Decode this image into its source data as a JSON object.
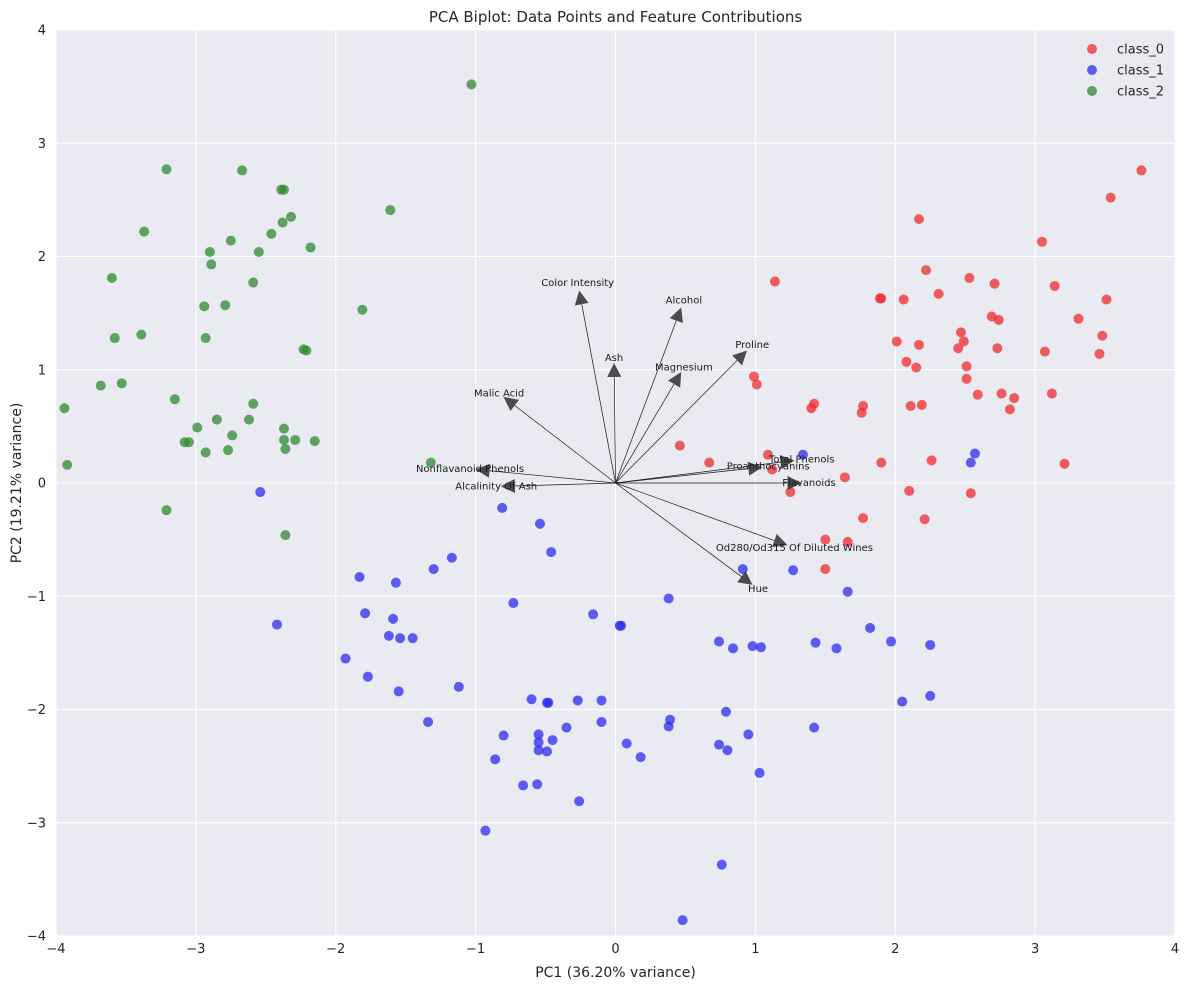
{
  "chart_data": {
    "type": "scatter",
    "title": "PCA Biplot: Data Points and Feature Contributions",
    "xlabel": "PC1 (36.20% variance)",
    "ylabel": "PC2 (19.21% variance)",
    "xlim": [
      -4,
      4
    ],
    "ylim": [
      -4,
      4
    ],
    "xticks": [
      -4,
      -3,
      -2,
      -1,
      0,
      1,
      2,
      3,
      4
    ],
    "yticks": [
      -4,
      -3,
      -2,
      -1,
      0,
      1,
      2,
      3,
      4
    ],
    "grid": true,
    "legend_position": "top-right",
    "series": [
      {
        "name": "class_0",
        "color": "#ef2b2d",
        "points": [
          [
            3.76,
            2.76
          ],
          [
            3.54,
            2.52
          ],
          [
            2.17,
            2.33
          ],
          [
            3.05,
            2.13
          ],
          [
            2.22,
            1.88
          ],
          [
            2.53,
            1.81
          ],
          [
            3.14,
            1.74
          ],
          [
            2.71,
            1.76
          ],
          [
            1.14,
            1.78
          ],
          [
            2.31,
            1.67
          ],
          [
            1.9,
            1.63
          ],
          [
            1.89,
            1.63
          ],
          [
            2.06,
            1.62
          ],
          [
            3.51,
            1.62
          ],
          [
            2.69,
            1.47
          ],
          [
            2.74,
            1.44
          ],
          [
            3.31,
            1.45
          ],
          [
            2.47,
            1.33
          ],
          [
            3.48,
            1.3
          ],
          [
            2.49,
            1.25
          ],
          [
            2.01,
            1.25
          ],
          [
            2.17,
            1.22
          ],
          [
            2.45,
            1.19
          ],
          [
            2.73,
            1.19
          ],
          [
            3.07,
            1.16
          ],
          [
            3.46,
            1.14
          ],
          [
            2.08,
            1.07
          ],
          [
            2.15,
            1.02
          ],
          [
            2.51,
            1.03
          ],
          [
            0.99,
            0.94
          ],
          [
            1.01,
            0.87
          ],
          [
            2.51,
            0.92
          ],
          [
            2.59,
            0.78
          ],
          [
            2.76,
            0.79
          ],
          [
            3.12,
            0.79
          ],
          [
            2.85,
            0.75
          ],
          [
            1.42,
            0.7
          ],
          [
            1.4,
            0.66
          ],
          [
            1.77,
            0.68
          ],
          [
            2.19,
            0.69
          ],
          [
            2.11,
            0.68
          ],
          [
            1.76,
            0.62
          ],
          [
            2.82,
            0.65
          ],
          [
            0.46,
            0.33
          ],
          [
            1.09,
            0.25
          ],
          [
            0.67,
            0.18
          ],
          [
            1.12,
            0.12
          ],
          [
            1.9,
            0.18
          ],
          [
            2.26,
            0.2
          ],
          [
            3.21,
            0.17
          ],
          [
            1.64,
            0.05
          ],
          [
            1.25,
            -0.08
          ],
          [
            2.1,
            -0.07
          ],
          [
            2.54,
            -0.09
          ],
          [
            1.77,
            -0.31
          ],
          [
            2.21,
            -0.32
          ],
          [
            1.66,
            -0.52
          ],
          [
            1.5,
            -0.5
          ],
          [
            1.5,
            -0.76
          ]
        ]
      },
      {
        "name": "class_1",
        "color": "#2b2bef",
        "points": [
          [
            1.34,
            0.25
          ],
          [
            2.57,
            0.26
          ],
          [
            2.54,
            0.18
          ],
          [
            -2.54,
            -0.08
          ],
          [
            -0.81,
            -0.22
          ],
          [
            -0.54,
            -0.36
          ],
          [
            -0.46,
            -0.61
          ],
          [
            -1.17,
            -0.66
          ],
          [
            -1.3,
            -0.76
          ],
          [
            -1.83,
            -0.83
          ],
          [
            -1.57,
            -0.88
          ],
          [
            0.91,
            -0.76
          ],
          [
            1.27,
            -0.77
          ],
          [
            1.66,
            -0.96
          ],
          [
            0.38,
            -1.02
          ],
          [
            -0.73,
            -1.06
          ],
          [
            -1.79,
            -1.15
          ],
          [
            -1.59,
            -1.2
          ],
          [
            -0.16,
            -1.16
          ],
          [
            -2.42,
            -1.25
          ],
          [
            0.03,
            -1.26
          ],
          [
            0.04,
            -1.26
          ],
          [
            1.82,
            -1.28
          ],
          [
            -1.62,
            -1.35
          ],
          [
            -1.54,
            -1.37
          ],
          [
            -1.45,
            -1.37
          ],
          [
            0.74,
            -1.4
          ],
          [
            1.43,
            -1.41
          ],
          [
            1.97,
            -1.4
          ],
          [
            0.84,
            -1.46
          ],
          [
            0.98,
            -1.44
          ],
          [
            1.04,
            -1.45
          ],
          [
            1.58,
            -1.46
          ],
          [
            2.25,
            -1.43
          ],
          [
            -1.93,
            -1.55
          ],
          [
            -1.77,
            -1.71
          ],
          [
            -1.55,
            -1.84
          ],
          [
            -1.12,
            -1.8
          ],
          [
            -0.6,
            -1.91
          ],
          [
            -0.48,
            -1.94
          ],
          [
            -0.49,
            -1.94
          ],
          [
            -0.27,
            -1.92
          ],
          [
            -0.1,
            -1.92
          ],
          [
            2.05,
            -1.93
          ],
          [
            2.25,
            -1.88
          ],
          [
            0.79,
            -2.02
          ],
          [
            -1.34,
            -2.11
          ],
          [
            -0.1,
            -2.11
          ],
          [
            0.39,
            -2.09
          ],
          [
            0.38,
            -2.15
          ],
          [
            -0.8,
            -2.23
          ],
          [
            -0.55,
            -2.22
          ],
          [
            -0.35,
            -2.16
          ],
          [
            -0.55,
            -2.29
          ],
          [
            -0.45,
            -2.27
          ],
          [
            0.08,
            -2.3
          ],
          [
            0.74,
            -2.31
          ],
          [
            0.95,
            -2.22
          ],
          [
            1.42,
            -2.16
          ],
          [
            -0.55,
            -2.36
          ],
          [
            -0.49,
            -2.37
          ],
          [
            0.8,
            -2.36
          ],
          [
            0.18,
            -2.42
          ],
          [
            -0.86,
            -2.44
          ],
          [
            1.03,
            -2.56
          ],
          [
            -0.66,
            -2.67
          ],
          [
            -0.56,
            -2.66
          ],
          [
            -0.26,
            -2.81
          ],
          [
            -0.93,
            -3.07
          ],
          [
            0.76,
            -3.37
          ],
          [
            0.48,
            -3.86
          ]
        ]
      },
      {
        "name": "class_2",
        "color": "#2e8b2e",
        "points": [
          [
            -1.03,
            3.52
          ],
          [
            -3.21,
            2.77
          ],
          [
            -2.67,
            2.76
          ],
          [
            -2.39,
            2.59
          ],
          [
            -2.37,
            2.59
          ],
          [
            -1.61,
            2.41
          ],
          [
            -2.32,
            2.35
          ],
          [
            -3.37,
            2.22
          ],
          [
            -2.38,
            2.3
          ],
          [
            -2.46,
            2.2
          ],
          [
            -2.75,
            2.14
          ],
          [
            -2.18,
            2.08
          ],
          [
            -2.9,
            2.04
          ],
          [
            -2.55,
            2.04
          ],
          [
            -2.89,
            1.93
          ],
          [
            -3.6,
            1.81
          ],
          [
            -2.59,
            1.77
          ],
          [
            -2.94,
            1.56
          ],
          [
            -2.79,
            1.57
          ],
          [
            -1.81,
            1.53
          ],
          [
            -3.58,
            1.28
          ],
          [
            -3.39,
            1.31
          ],
          [
            -2.93,
            1.28
          ],
          [
            -2.23,
            1.18
          ],
          [
            -2.21,
            1.17
          ],
          [
            -3.68,
            0.86
          ],
          [
            -3.53,
            0.88
          ],
          [
            -3.94,
            0.66
          ],
          [
            -3.15,
            0.74
          ],
          [
            -2.59,
            0.7
          ],
          [
            -2.85,
            0.56
          ],
          [
            -2.62,
            0.56
          ],
          [
            -2.37,
            0.48
          ],
          [
            -2.99,
            0.49
          ],
          [
            -2.74,
            0.42
          ],
          [
            -2.37,
            0.38
          ],
          [
            -2.29,
            0.38
          ],
          [
            -2.15,
            0.37
          ],
          [
            -3.05,
            0.36
          ],
          [
            -3.08,
            0.36
          ],
          [
            -2.93,
            0.27
          ],
          [
            -2.77,
            0.29
          ],
          [
            -2.36,
            0.3
          ],
          [
            -3.92,
            0.16
          ],
          [
            -1.32,
            0.18
          ],
          [
            -3.21,
            -0.24
          ],
          [
            -2.36,
            -0.46
          ]
        ]
      }
    ],
    "loadings": [
      {
        "name": "Color Intensity",
        "x": -0.26,
        "y": 1.7
      },
      {
        "name": "Alcohol",
        "x": 0.47,
        "y": 1.55
      },
      {
        "name": "Proline",
        "x": 0.94,
        "y": 1.17
      },
      {
        "name": "Ash",
        "x": -0.01,
        "y": 1.06
      },
      {
        "name": "Magnesium",
        "x": 0.47,
        "y": 0.98
      },
      {
        "name": "Malic Acid",
        "x": -0.8,
        "y": 0.76
      },
      {
        "name": "Total Phenols",
        "x": 1.28,
        "y": 0.2
      },
      {
        "name": "Proanthocyanins",
        "x": 1.05,
        "y": 0.14
      },
      {
        "name": "Nonflavanoid Phenols",
        "x": -1.0,
        "y": 0.12
      },
      {
        "name": "Flavanoids",
        "x": 1.33,
        "y": 0.0
      },
      {
        "name": "Alcalinity Of Ash",
        "x": -0.82,
        "y": -0.03
      },
      {
        "name": "Od280/Od315 Of Diluted Wines",
        "x": 1.23,
        "y": -0.55
      },
      {
        "name": "Hue",
        "x": 0.98,
        "y": -0.9
      }
    ]
  }
}
